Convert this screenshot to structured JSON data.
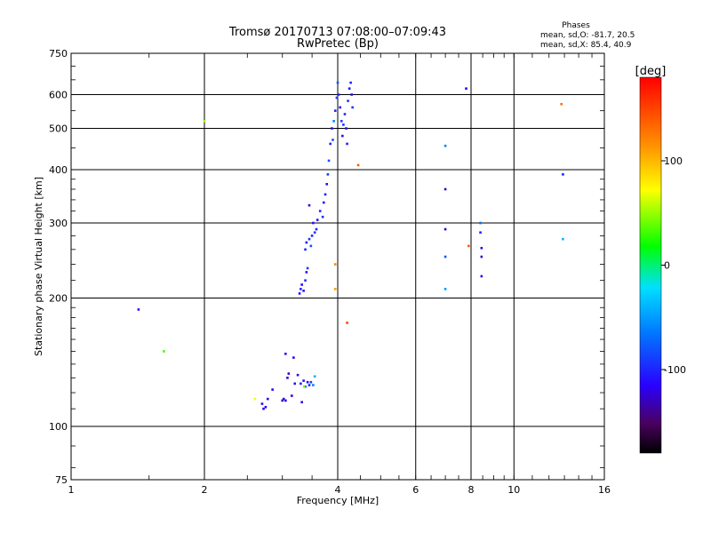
{
  "header": {
    "title_line1": "Tromsø 20170713 07:08:00–07:09:43",
    "title_line2": "RwPretec (Bp)",
    "stats_title": "Phases",
    "stats_line1": "mean, sd,O: -81.7, 20.5",
    "stats_line2": "mean, sd,X:  85.4, 40.9"
  },
  "chart_data": {
    "type": "scatter",
    "title": "Tromsø 20170713 07:08:00–07:09:43",
    "subtitle": "RwPretec (Bp)",
    "xlabel": "Frequency [MHz]",
    "ylabel": "Stationary phase Virtual Height [km]",
    "x_scale": "log",
    "y_scale": "log",
    "xlim": [
      1,
      16
    ],
    "ylim": [
      75,
      750
    ],
    "x_ticks": [
      1,
      2,
      4,
      6,
      8,
      10,
      16
    ],
    "x_tick_labels": [
      "1",
      "2",
      "4",
      "6",
      "8",
      "10",
      "16"
    ],
    "y_ticks": [
      75,
      100,
      200,
      300,
      400,
      500,
      600,
      750
    ],
    "y_tick_labels": [
      "75",
      "100",
      "200",
      "300",
      "400",
      "500",
      "600",
      "750"
    ],
    "grid": true,
    "colorbar": {
      "label": "[deg]",
      "range": [
        -180,
        180
      ],
      "tick_values": [
        100,
        0,
        -100
      ],
      "tick_labels": [
        "100",
        "0",
        "-100"
      ]
    },
    "points": [
      {
        "x": 1.42,
        "y": 188,
        "c": -110
      },
      {
        "x": 1.62,
        "y": 150,
        "c": 30
      },
      {
        "x": 2.0,
        "y": 520,
        "c": 50
      },
      {
        "x": 2.6,
        "y": 116,
        "c": 70
      },
      {
        "x": 2.7,
        "y": 113,
        "c": -110
      },
      {
        "x": 2.72,
        "y": 110,
        "c": -120
      },
      {
        "x": 2.75,
        "y": 111,
        "c": -115
      },
      {
        "x": 2.78,
        "y": 116,
        "c": -120
      },
      {
        "x": 2.85,
        "y": 122,
        "c": -115
      },
      {
        "x": 3.05,
        "y": 148,
        "c": -110
      },
      {
        "x": 3.0,
        "y": 115,
        "c": -130
      },
      {
        "x": 3.02,
        "y": 116,
        "c": -120
      },
      {
        "x": 3.05,
        "y": 115,
        "c": -120
      },
      {
        "x": 3.08,
        "y": 130,
        "c": -120
      },
      {
        "x": 3.1,
        "y": 133,
        "c": -130
      },
      {
        "x": 3.15,
        "y": 118,
        "c": -125
      },
      {
        "x": 3.18,
        "y": 145,
        "c": -115
      },
      {
        "x": 3.2,
        "y": 126,
        "c": -110
      },
      {
        "x": 3.25,
        "y": 132,
        "c": -120
      },
      {
        "x": 3.3,
        "y": 126,
        "c": -100
      },
      {
        "x": 3.32,
        "y": 114,
        "c": -120
      },
      {
        "x": 3.35,
        "y": 128,
        "c": -110
      },
      {
        "x": 3.38,
        "y": 124,
        "c": -95
      },
      {
        "x": 3.42,
        "y": 127,
        "c": -110
      },
      {
        "x": 3.45,
        "y": 125,
        "c": -100
      },
      {
        "x": 3.48,
        "y": 127,
        "c": -90
      },
      {
        "x": 3.52,
        "y": 125,
        "c": -60
      },
      {
        "x": 3.55,
        "y": 131,
        "c": -40
      },
      {
        "x": 3.36,
        "y": 124,
        "c": 40
      },
      {
        "x": 3.28,
        "y": 205,
        "c": -110
      },
      {
        "x": 3.3,
        "y": 210,
        "c": -100
      },
      {
        "x": 3.32,
        "y": 215,
        "c": -115
      },
      {
        "x": 3.35,
        "y": 208,
        "c": -105
      },
      {
        "x": 3.38,
        "y": 220,
        "c": -95
      },
      {
        "x": 3.4,
        "y": 230,
        "c": -110
      },
      {
        "x": 3.42,
        "y": 235,
        "c": -90
      },
      {
        "x": 3.38,
        "y": 260,
        "c": -100
      },
      {
        "x": 3.4,
        "y": 270,
        "c": -110
      },
      {
        "x": 3.45,
        "y": 275,
        "c": -95
      },
      {
        "x": 3.48,
        "y": 265,
        "c": -80
      },
      {
        "x": 3.5,
        "y": 280,
        "c": -100
      },
      {
        "x": 3.52,
        "y": 300,
        "c": -110
      },
      {
        "x": 3.55,
        "y": 285,
        "c": -90
      },
      {
        "x": 3.58,
        "y": 290,
        "c": -100
      },
      {
        "x": 3.45,
        "y": 330,
        "c": -120
      },
      {
        "x": 3.6,
        "y": 305,
        "c": -110
      },
      {
        "x": 3.65,
        "y": 320,
        "c": -100
      },
      {
        "x": 3.7,
        "y": 310,
        "c": -95
      },
      {
        "x": 3.72,
        "y": 335,
        "c": -110
      },
      {
        "x": 3.75,
        "y": 350,
        "c": -100
      },
      {
        "x": 3.78,
        "y": 370,
        "c": -110
      },
      {
        "x": 3.8,
        "y": 390,
        "c": -90
      },
      {
        "x": 3.82,
        "y": 420,
        "c": -80
      },
      {
        "x": 3.85,
        "y": 460,
        "c": -100
      },
      {
        "x": 3.88,
        "y": 500,
        "c": -110
      },
      {
        "x": 3.9,
        "y": 470,
        "c": -80
      },
      {
        "x": 3.92,
        "y": 520,
        "c": -60
      },
      {
        "x": 3.95,
        "y": 550,
        "c": -100
      },
      {
        "x": 3.98,
        "y": 590,
        "c": -90
      },
      {
        "x": 4.0,
        "y": 640,
        "c": -80
      },
      {
        "x": 4.02,
        "y": 600,
        "c": -100
      },
      {
        "x": 4.05,
        "y": 560,
        "c": -110
      },
      {
        "x": 4.08,
        "y": 520,
        "c": -90
      },
      {
        "x": 4.1,
        "y": 480,
        "c": -110
      },
      {
        "x": 4.12,
        "y": 510,
        "c": -95
      },
      {
        "x": 4.15,
        "y": 540,
        "c": -100
      },
      {
        "x": 4.18,
        "y": 500,
        "c": -110
      },
      {
        "x": 4.2,
        "y": 460,
        "c": -100
      },
      {
        "x": 4.22,
        "y": 580,
        "c": -90
      },
      {
        "x": 4.25,
        "y": 620,
        "c": -110
      },
      {
        "x": 4.28,
        "y": 640,
        "c": -100
      },
      {
        "x": 4.3,
        "y": 600,
        "c": -110
      },
      {
        "x": 4.32,
        "y": 560,
        "c": -90
      },
      {
        "x": 3.95,
        "y": 240,
        "c": 120
      },
      {
        "x": 3.95,
        "y": 210,
        "c": 110
      },
      {
        "x": 4.2,
        "y": 175,
        "c": 150
      },
      {
        "x": 4.45,
        "y": 410,
        "c": 140
      },
      {
        "x": 7.0,
        "y": 455,
        "c": -60
      },
      {
        "x": 7.0,
        "y": 360,
        "c": -130
      },
      {
        "x": 7.0,
        "y": 290,
        "c": -130
      },
      {
        "x": 7.0,
        "y": 250,
        "c": -80
      },
      {
        "x": 7.0,
        "y": 210,
        "c": -50
      },
      {
        "x": 7.8,
        "y": 620,
        "c": -120
      },
      {
        "x": 7.9,
        "y": 265,
        "c": 140
      },
      {
        "x": 8.4,
        "y": 300,
        "c": -70
      },
      {
        "x": 8.4,
        "y": 285,
        "c": -100
      },
      {
        "x": 8.45,
        "y": 262,
        "c": -120
      },
      {
        "x": 8.45,
        "y": 250,
        "c": -130
      },
      {
        "x": 8.45,
        "y": 225,
        "c": -120
      },
      {
        "x": 12.8,
        "y": 570,
        "c": 130
      },
      {
        "x": 12.9,
        "y": 390,
        "c": -100
      },
      {
        "x": 12.9,
        "y": 275,
        "c": -40
      }
    ]
  },
  "colors": {
    "axes": "#000000",
    "grid": "#000000",
    "background": "#ffffff"
  }
}
